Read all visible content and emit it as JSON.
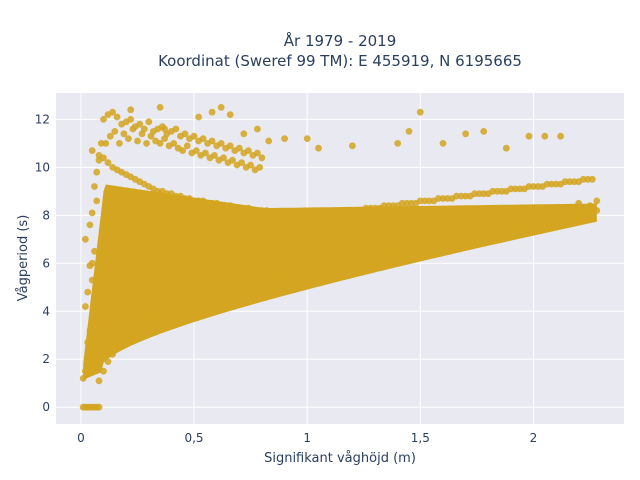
{
  "chart_data": {
    "type": "scatter",
    "title_line1": "År 1979 - 2019",
    "title_line2": "Koordinat (Sweref 99 TM): E 455919, N 6195665",
    "xlabel": "Signifikant våghöjd (m)",
    "ylabel": "Vågperiod (s)",
    "xlim": [
      -0.11,
      2.4
    ],
    "ylim": [
      -0.7,
      13.1
    ],
    "x_ticks": [
      {
        "value": 0,
        "label": "0"
      },
      {
        "value": 0.5,
        "label": "0,5"
      },
      {
        "value": 1,
        "label": "1"
      },
      {
        "value": 1.5,
        "label": "1,5"
      },
      {
        "value": 2,
        "label": "2"
      }
    ],
    "y_ticks": [
      {
        "value": 0,
        "label": "0"
      },
      {
        "value": 2,
        "label": "2"
      },
      {
        "value": 4,
        "label": "4"
      },
      {
        "value": 6,
        "label": "6"
      },
      {
        "value": 8,
        "label": "8"
      },
      {
        "value": 10,
        "label": "10"
      },
      {
        "value": 12,
        "label": "12"
      }
    ],
    "grid": true,
    "marker_color": "#d4a520",
    "plot_background": "#e9e9f1",
    "series": [
      {
        "x": [
          0.01,
          0.02,
          0.03,
          0.04,
          0.05,
          0.06,
          0.07,
          0.08,
          0.01,
          0.02,
          0.03,
          0.05,
          0.07,
          0.03,
          0.04,
          0.06,
          0.02,
          0.03,
          0.05,
          0.04,
          0.06,
          0.02,
          0.04,
          0.05,
          0.07,
          0.06,
          0.07,
          0.08,
          0.05,
          0.09,
          0.08,
          0.1,
          0.12,
          0.14,
          0.16,
          0.18,
          0.2,
          0.22,
          0.24,
          0.26,
          0.28,
          0.3,
          0.32,
          0.34,
          0.36,
          0.38,
          0.4,
          0.42,
          0.44,
          0.46,
          0.48,
          0.5,
          0.52,
          0.54,
          0.56,
          0.58,
          0.6,
          0.62,
          0.64,
          0.66,
          0.68,
          0.7,
          0.72,
          0.74,
          0.76,
          0.78,
          0.8,
          0.82,
          0.84,
          0.86,
          0.88,
          0.9,
          0.92,
          0.94,
          0.96,
          0.98,
          1.0,
          1.02,
          1.04,
          1.06,
          1.08,
          1.1,
          1.12,
          1.14,
          1.16,
          1.18,
          1.2,
          1.22,
          1.24,
          1.26,
          1.28,
          1.3,
          1.32,
          1.34,
          1.36,
          1.38,
          1.4,
          1.42,
          1.44,
          1.46,
          1.48,
          1.5,
          1.52,
          1.54,
          1.56,
          1.58,
          1.6,
          1.62,
          1.64,
          1.66,
          1.68,
          1.7,
          1.72,
          1.74,
          1.76,
          1.78,
          1.8,
          1.82,
          1.84,
          1.86,
          1.88,
          1.9,
          1.92,
          1.94,
          1.96,
          1.98,
          2.0,
          2.02,
          2.04,
          2.06,
          2.08,
          2.1,
          2.12,
          2.14,
          2.16,
          2.18,
          2.2,
          2.22,
          2.24,
          2.26,
          2.28,
          0.08,
          0.1,
          0.12,
          0.14,
          0.16,
          0.18,
          0.2,
          0.22,
          0.24,
          0.26,
          0.28,
          0.3,
          0.32,
          0.34,
          0.36,
          0.38,
          0.4,
          0.42,
          0.44,
          0.46,
          0.48,
          0.5,
          0.52,
          0.54,
          0.56,
          0.58,
          0.6,
          0.62,
          0.64,
          0.66,
          0.68,
          0.7,
          0.72,
          0.74,
          0.76,
          0.78,
          0.8,
          0.82,
          0.84,
          0.86,
          0.88,
          0.9,
          0.92,
          0.94,
          0.96,
          0.98,
          1.0,
          1.02,
          1.04,
          1.06,
          1.08,
          1.1,
          1.12,
          1.14,
          1.16,
          1.18,
          1.2,
          1.22,
          1.24,
          1.26,
          1.28,
          1.3,
          1.32,
          1.34,
          1.36,
          1.38,
          1.4,
          1.42,
          1.44,
          1.46,
          1.48,
          1.5,
          1.52,
          1.54,
          1.56,
          1.58,
          1.6,
          1.62,
          1.64,
          1.66,
          1.68,
          1.7,
          1.72,
          1.74,
          1.76,
          1.78,
          1.8,
          1.82,
          1.84,
          1.86,
          1.88,
          1.9,
          1.92,
          1.94,
          1.96,
          1.98,
          2.0,
          2.02,
          2.04,
          2.06,
          2.08,
          2.1,
          2.12,
          2.14,
          2.16,
          2.18,
          2.2,
          2.22,
          2.24,
          2.26,
          2.28,
          0.1,
          0.12,
          0.14,
          0.16,
          0.18,
          0.2,
          0.22,
          0.24,
          0.26,
          0.28,
          0.3,
          0.32,
          0.34,
          0.36,
          0.38,
          0.4,
          0.44,
          0.48,
          0.52,
          0.56,
          0.6,
          0.65,
          0.7,
          0.75,
          0.8,
          0.85,
          0.9,
          0.95,
          1.0,
          1.05,
          1.1,
          1.15,
          1.2,
          1.25,
          1.3,
          1.35,
          1.4,
          1.45,
          1.5,
          1.55,
          1.6,
          1.65,
          1.7,
          1.75,
          1.8,
          1.85,
          1.9,
          1.95,
          2.0,
          2.05,
          2.1,
          2.15,
          2.2,
          0.12,
          0.14,
          0.16,
          0.18,
          0.2,
          0.24,
          0.28,
          0.32,
          0.36,
          0.4,
          0.45,
          0.5,
          0.55,
          0.6,
          0.65,
          0.7,
          0.75,
          0.8,
          0.85,
          0.9,
          0.95,
          1.0,
          1.1,
          1.2,
          1.3,
          1.4,
          1.5,
          1.6,
          1.7,
          1.8,
          1.9,
          2.0,
          2.1,
          2.2,
          0.16,
          0.2,
          0.24,
          0.28,
          0.32,
          0.36,
          0.4,
          0.5,
          0.6,
          0.7,
          0.8,
          0.9,
          1.0,
          1.1,
          1.2,
          1.3,
          1.4,
          1.5,
          1.6,
          1.7,
          1.8,
          1.9,
          2.0,
          2.1,
          2.2,
          0.11,
          0.13,
          0.15,
          0.17,
          0.19,
          0.21,
          0.23,
          0.25,
          0.27,
          0.29,
          0.31,
          0.33,
          0.35,
          0.37,
          0.39,
          0.41,
          0.43,
          0.45,
          0.47,
          0.49,
          0.51,
          0.53,
          0.55,
          0.57,
          0.59,
          0.61,
          0.63,
          0.65,
          0.67,
          0.69,
          0.71,
          0.73,
          0.75,
          0.77,
          0.79,
          0.1,
          0.12,
          0.14,
          0.16,
          0.18,
          0.2,
          0.22,
          0.24,
          0.26,
          0.28,
          0.3,
          0.32,
          0.34,
          0.36,
          0.38,
          0.4,
          0.42,
          0.44,
          0.46,
          0.48,
          0.5,
          0.52,
          0.54,
          0.56,
          0.58,
          0.6,
          0.62,
          0.64,
          0.66,
          0.68,
          0.7,
          0.72,
          0.74,
          0.76,
          0.78,
          0.8,
          0.14,
          0.16,
          0.18,
          0.2,
          0.22,
          0.24,
          0.26,
          0.28,
          0.3,
          0.32,
          0.34,
          0.36,
          0.38,
          0.4,
          0.42,
          0.44,
          0.46,
          0.48,
          0.5,
          0.52,
          0.54,
          0.56,
          0.58,
          0.6,
          0.22,
          0.35,
          0.37,
          0.52,
          0.58,
          0.62,
          0.66,
          0.72,
          0.78,
          0.83,
          0.9,
          1.0,
          1.05,
          1.2,
          1.4,
          1.45,
          1.5,
          1.6,
          1.7,
          1.78,
          1.88,
          1.98,
          2.05,
          2.12,
          0.05,
          0.08,
          0.1,
          0.15,
          0.2,
          0.25,
          0.3,
          0.35,
          0.4,
          0.45,
          0.5,
          0.55,
          0.6,
          0.65,
          0.7,
          0.75,
          0.8,
          0.85,
          0.9,
          0.95,
          1.0,
          1.05,
          1.1,
          1.15,
          1.2,
          1.25,
          1.3,
          1.35,
          1.4,
          1.45,
          1.5,
          1.55,
          1.6,
          1.65,
          1.7,
          1.75,
          1.8,
          1.85,
          1.9,
          1.95,
          2.0,
          2.05,
          2.1,
          2.15,
          2.2,
          2.25
        ],
        "y": [
          0,
          0,
          0,
          0,
          0,
          0,
          0,
          0,
          1.2,
          1.5,
          1.8,
          2.0,
          2.3,
          2.7,
          3.2,
          3.8,
          4.2,
          4.8,
          5.3,
          5.9,
          6.5,
          7.0,
          7.6,
          8.1,
          8.6,
          9.2,
          9.8,
          10.3,
          10.7,
          11.0,
          1.1,
          1.5,
          1.9,
          2.2,
          2.5,
          2.8,
          3.0,
          3.2,
          3.4,
          3.6,
          3.7,
          3.8,
          3.9,
          4.0,
          4.1,
          4.2,
          4.3,
          4.3,
          4.4,
          4.5,
          4.5,
          4.6,
          4.6,
          4.7,
          4.7,
          4.8,
          4.8,
          4.9,
          4.9,
          5.0,
          5.0,
          5.1,
          5.1,
          5.2,
          5.2,
          5.3,
          5.3,
          5.4,
          5.4,
          5.5,
          5.5,
          5.5,
          5.6,
          5.6,
          5.7,
          5.7,
          5.8,
          5.8,
          5.8,
          5.9,
          5.9,
          6.0,
          6.0,
          6.0,
          6.1,
          6.1,
          6.2,
          6.2,
          6.2,
          6.3,
          6.3,
          6.4,
          6.4,
          6.4,
          6.5,
          6.5,
          6.5,
          6.6,
          6.6,
          6.6,
          6.7,
          6.7,
          6.7,
          6.8,
          6.8,
          6.8,
          6.9,
          6.9,
          6.9,
          7.0,
          7.0,
          7.0,
          7.1,
          7.1,
          7.1,
          7.2,
          7.2,
          7.2,
          7.3,
          7.3,
          7.3,
          7.4,
          7.4,
          7.4,
          7.5,
          7.5,
          7.5,
          7.6,
          7.6,
          7.7,
          7.7,
          7.8,
          7.8,
          7.9,
          7.9,
          8.0,
          8.0,
          8.1,
          8.1,
          8.2,
          8.2,
          10.5,
          10.4,
          10.2,
          10.0,
          9.9,
          9.8,
          9.7,
          9.6,
          9.5,
          9.4,
          9.3,
          9.2,
          9.1,
          9.0,
          9.0,
          8.9,
          8.9,
          8.8,
          8.8,
          8.7,
          8.7,
          8.6,
          8.6,
          8.6,
          8.5,
          8.5,
          8.5,
          8.4,
          8.4,
          8.4,
          8.3,
          8.3,
          8.3,
          8.3,
          8.2,
          8.2,
          8.2,
          8.2,
          8.1,
          8.1,
          8.1,
          8.1,
          8.0,
          8.0,
          8.0,
          8.0,
          8.0,
          8.0,
          8.0,
          8.0,
          8.0,
          8.1,
          8.1,
          8.1,
          8.1,
          8.2,
          8.2,
          8.2,
          8.2,
          8.3,
          8.3,
          8.3,
          8.3,
          8.4,
          8.4,
          8.4,
          8.4,
          8.5,
          8.5,
          8.5,
          8.5,
          8.6,
          8.6,
          8.6,
          8.6,
          8.7,
          8.7,
          8.7,
          8.7,
          8.8,
          8.8,
          8.8,
          8.8,
          8.9,
          8.9,
          8.9,
          8.9,
          9.0,
          9.0,
          9.0,
          9.0,
          9.1,
          9.1,
          9.1,
          9.1,
          9.2,
          9.2,
          9.2,
          9.2,
          9.3,
          9.3,
          9.3,
          9.3,
          9.4,
          9.4,
          9.4,
          9.4,
          9.5,
          9.5,
          9.5,
          8.6,
          4.0,
          4.6,
          5.0,
          5.3,
          5.5,
          5.6,
          5.7,
          5.8,
          5.9,
          6.0,
          6.0,
          6.1,
          6.1,
          6.2,
          6.2,
          6.3,
          6.3,
          6.4,
          6.4,
          6.5,
          6.6,
          6.6,
          6.7,
          6.7,
          6.8,
          6.8,
          6.9,
          6.9,
          7.0,
          7.0,
          7.0,
          7.1,
          7.1,
          7.2,
          7.2,
          7.2,
          7.3,
          7.3,
          7.3,
          7.4,
          7.4,
          7.4,
          7.5,
          7.5,
          7.5,
          7.6,
          7.6,
          7.7,
          7.7,
          7.8,
          7.8,
          7.9,
          8.0,
          6.0,
          6.5,
          6.8,
          7.0,
          7.2,
          7.4,
          7.5,
          7.6,
          7.7,
          7.7,
          7.7,
          7.7,
          7.7,
          7.7,
          7.7,
          7.7,
          7.7,
          7.7,
          7.7,
          7.7,
          7.7,
          7.7,
          7.7,
          7.8,
          7.8,
          7.8,
          7.8,
          7.9,
          7.9,
          8.0,
          8.0,
          8.1,
          8.2,
          8.3,
          8.0,
          8.1,
          8.2,
          8.2,
          8.2,
          8.1,
          8.0,
          7.8,
          7.5,
          7.2,
          7.0,
          6.8,
          6.6,
          6.5,
          6.5,
          6.6,
          6.8,
          7.0,
          7.2,
          7.4,
          7.5,
          7.6,
          7.8,
          8.0,
          8.5,
          11.0,
          11.3,
          11.5,
          11.0,
          11.4,
          11.2,
          11.6,
          11.1,
          11.4,
          11.0,
          11.3,
          11.1,
          11.0,
          11.2,
          10.9,
          11.0,
          10.8,
          10.7,
          10.9,
          10.6,
          10.7,
          10.5,
          10.6,
          10.4,
          10.5,
          10.3,
          10.4,
          10.2,
          10.3,
          10.1,
          10.2,
          10.0,
          10.1,
          9.9,
          10.0,
          12.0,
          12.2,
          12.3,
          12.1,
          11.8,
          11.9,
          12.0,
          11.7,
          11.8,
          11.6,
          11.9,
          11.5,
          11.6,
          11.7,
          11.4,
          11.5,
          11.6,
          11.3,
          11.4,
          11.2,
          11.3,
          11.1,
          11.2,
          11.0,
          11.1,
          10.9,
          11.0,
          10.8,
          10.9,
          10.7,
          10.8,
          10.6,
          10.7,
          10.5,
          10.6,
          10.4,
          2.3,
          2.6,
          2.8,
          3.0,
          3.1,
          3.2,
          3.3,
          3.4,
          3.5,
          3.6,
          3.7,
          3.7,
          3.8,
          3.9,
          3.9,
          4.0,
          4.0,
          4.1,
          4.1,
          4.2,
          4.2,
          4.3,
          4.3,
          4.4,
          12.4,
          12.5,
          11.6,
          12.1,
          12.3,
          12.5,
          12.2,
          11.4,
          11.6,
          11.1,
          11.2,
          11.2,
          10.8,
          10.9,
          11.0,
          11.5,
          12.3,
          11.0,
          11.4,
          11.5,
          10.8,
          11.3,
          11.3,
          11.3,
          6.0,
          5.5,
          6.2,
          6.5,
          6.8,
          6.9,
          7.0,
          7.1,
          7.2,
          7.3,
          7.3,
          7.4,
          7.4,
          7.5,
          7.5,
          7.5,
          7.6,
          7.6,
          7.6,
          7.7,
          7.7,
          7.7,
          7.7,
          7.8,
          7.8,
          7.8,
          7.8,
          7.8,
          7.9,
          7.9,
          7.9,
          7.9,
          7.9,
          8.0,
          8.0,
          8.0,
          8.0,
          8.0,
          8.1,
          8.1,
          8.1,
          8.1,
          8.2,
          8.2,
          8.3,
          8.4
        ]
      }
    ]
  }
}
